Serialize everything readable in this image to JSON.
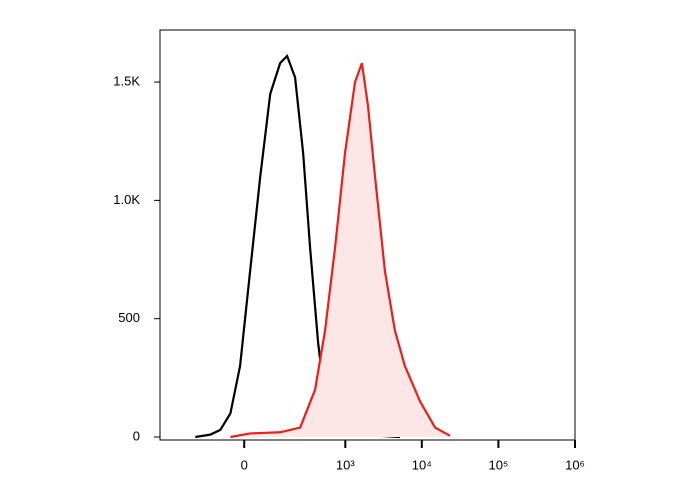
{
  "chart_data": {
    "type": "line",
    "xscale": "biexponential",
    "xlim": [
      -600,
      1000000
    ],
    "xticks": [
      0,
      {
        "value": 1000,
        "label": "10³"
      },
      {
        "value": 10000,
        "label": "10⁴"
      },
      {
        "value": 100000,
        "label": "10⁵"
      },
      {
        "value": 1000000,
        "label": "10⁶"
      }
    ],
    "ylim": [
      0,
      1720
    ],
    "yticks": [
      0,
      500,
      {
        "value": 1000,
        "label": "1.0K"
      },
      {
        "value": 1500,
        "label": "1.5K"
      }
    ],
    "series": [
      {
        "color": "#000000",
        "fill": null,
        "x": [
          -198,
          -116,
          -75,
          -41,
          -12,
          17,
          48,
          83,
          125,
          161,
          211,
          274,
          341,
          437,
          541,
          733,
          1150,
          2840,
          5180
        ],
        "values": [
          0,
          10,
          30,
          100,
          300,
          700,
          1100,
          1450,
          1580,
          1610,
          1520,
          1200,
          800,
          400,
          150,
          50,
          20,
          5,
          0
        ]
      },
      {
        "color": "#e8201c",
        "fill": "#fde6e6",
        "x": [
          -41,
          17,
          125,
          249,
          398,
          541,
          733,
          991,
          1340,
          1650,
          1980,
          2450,
          3300,
          4450,
          6010,
          9500,
          14900,
          23400
        ],
        "values": [
          0,
          15,
          20,
          40,
          200,
          450,
          800,
          1200,
          1500,
          1580,
          1400,
          1100,
          700,
          450,
          300,
          150,
          40,
          5
        ]
      }
    ]
  }
}
